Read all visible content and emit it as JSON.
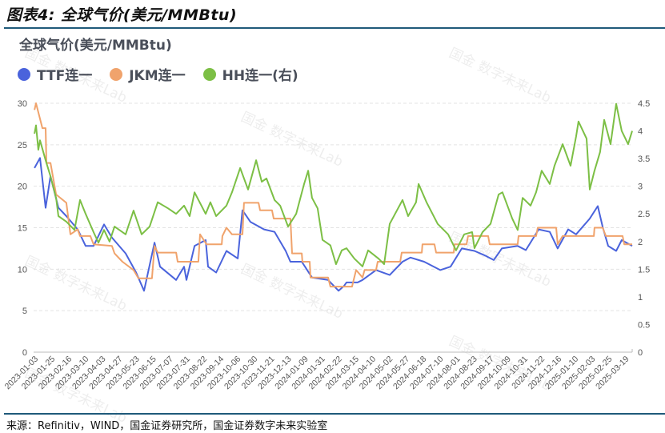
{
  "figure_title": "图表4:  全球气价(美元/MMBtu)",
  "source": "来源：Refinitiv，WIND，国金证券研究所，国金证券数字未来实验室",
  "watermark": "国金 数字未来Lab",
  "chart_data": {
    "type": "line",
    "title": "全球气价(美元/MMBtu)",
    "x_unit": "position along date axis, in date-label index (0 = 2023-01-03, 35 = 2025-03-19)",
    "x_tick_labels": [
      "2023-01-03",
      "2023-01-25",
      "2023-02-16",
      "2023-03-10",
      "2023-04-03",
      "2023-04-27",
      "2023-05-23",
      "2023-06-15",
      "2023-07-07",
      "2023-07-31",
      "2023-08-22",
      "2023-09-14",
      "2023-10-06",
      "2023-10-30",
      "2023-11-21",
      "2023-12-13",
      "2024-01-09",
      "2024-01-31",
      "2024-02-22",
      "2024-03-15",
      "2024-04-10",
      "2024-05-02",
      "2024-05-27",
      "2024-06-18",
      "2024-07-10",
      "2024-08-01",
      "2024-08-23",
      "2024-09-17",
      "2024-10-09",
      "2024-10-31",
      "2024-11-22",
      "2024-12-16",
      "2025-01-10",
      "2025-02-03",
      "2025-02-25",
      "2025-03-19"
    ],
    "x_range": [
      0,
      35.5
    ],
    "y_left": {
      "ticks": [
        "0",
        "5",
        "10",
        "15",
        "20",
        "25",
        "30"
      ],
      "range": [
        0,
        30
      ]
    },
    "y_right": {
      "ticks": [
        "0",
        "0.5",
        "1",
        "1.5",
        "2",
        "2.5",
        "3",
        "3.5",
        "4",
        "4.5"
      ],
      "range": [
        0,
        4.5
      ]
    },
    "grid": true,
    "legend_position": "top-left",
    "series": [
      {
        "name": "TTF连一",
        "axis": "left",
        "color": "#4a63dc",
        "points": [
          [
            0.05,
            22.2
          ],
          [
            0.38,
            23.4
          ],
          [
            0.71,
            17.4
          ],
          [
            1.0,
            21.2
          ],
          [
            1.47,
            17.4
          ],
          [
            1.94,
            16.4
          ],
          [
            2.61,
            14.8
          ],
          [
            3.08,
            12.8
          ],
          [
            3.55,
            12.8
          ],
          [
            4.17,
            15.4
          ],
          [
            4.64,
            13.8
          ],
          [
            5.45,
            11.9
          ],
          [
            6.07,
            9.6
          ],
          [
            6.54,
            7.4
          ],
          [
            7.16,
            13.2
          ],
          [
            7.49,
            10.3
          ],
          [
            8.44,
            8.7
          ],
          [
            8.91,
            10.3
          ],
          [
            9.05,
            8.7
          ],
          [
            9.53,
            12.8
          ],
          [
            10.19,
            13.5
          ],
          [
            10.33,
            10.3
          ],
          [
            10.81,
            9.6
          ],
          [
            11.42,
            12.2
          ],
          [
            12.09,
            11.3
          ],
          [
            12.37,
            17.1
          ],
          [
            12.84,
            15.7
          ],
          [
            13.65,
            14.8
          ],
          [
            14.27,
            14.5
          ],
          [
            14.93,
            12.2
          ],
          [
            15.21,
            10.9
          ],
          [
            15.88,
            10.9
          ],
          [
            16.49,
            9.0
          ],
          [
            17.44,
            8.7
          ],
          [
            18.06,
            7.4
          ],
          [
            18.39,
            8.0
          ],
          [
            18.53,
            8.4
          ],
          [
            19.19,
            8.4
          ],
          [
            19.48,
            8.7
          ],
          [
            20.28,
            9.9
          ],
          [
            21.09,
            9.3
          ],
          [
            21.85,
            10.9
          ],
          [
            22.32,
            11.4
          ],
          [
            23.13,
            10.9
          ],
          [
            24.08,
            9.9
          ],
          [
            24.69,
            10.3
          ],
          [
            25.36,
            12.5
          ],
          [
            26.11,
            12.2
          ],
          [
            26.78,
            11.6
          ],
          [
            27.25,
            11.1
          ],
          [
            27.73,
            12.5
          ],
          [
            28.67,
            12.8
          ],
          [
            29.15,
            12.3
          ],
          [
            29.91,
            14.8
          ],
          [
            30.57,
            14.5
          ],
          [
            31.04,
            12.5
          ],
          [
            31.66,
            14.8
          ],
          [
            32.13,
            14.2
          ],
          [
            32.94,
            16.1
          ],
          [
            33.41,
            17.6
          ],
          [
            33.7,
            15.1
          ],
          [
            34.03,
            12.8
          ],
          [
            34.5,
            12.2
          ],
          [
            34.83,
            13.5
          ],
          [
            35.45,
            12.8
          ]
        ]
      },
      {
        "name": "JKM连一",
        "axis": "left",
        "color": "#f0a36c",
        "points": [
          [
            0.05,
            29.2
          ],
          [
            0.14,
            30.0
          ],
          [
            0.52,
            27.0
          ],
          [
            0.71,
            27.0
          ],
          [
            0.76,
            22.8
          ],
          [
            1.0,
            22.8
          ],
          [
            1.33,
            19.0
          ],
          [
            1.94,
            18.0
          ],
          [
            2.18,
            14.2
          ],
          [
            2.61,
            14.8
          ],
          [
            2.75,
            14.0
          ],
          [
            3.36,
            14.0
          ],
          [
            3.55,
            13.0
          ],
          [
            4.64,
            12.8
          ],
          [
            4.79,
            11.9
          ],
          [
            5.26,
            10.9
          ],
          [
            5.92,
            9.9
          ],
          [
            6.21,
            8.9
          ],
          [
            7.01,
            8.9
          ],
          [
            7.16,
            12.8
          ],
          [
            7.35,
            12.0
          ],
          [
            8.44,
            12.0
          ],
          [
            8.53,
            10.9
          ],
          [
            9.76,
            10.9
          ],
          [
            9.86,
            14.2
          ],
          [
            10.24,
            13.0
          ],
          [
            11.14,
            13.0
          ],
          [
            11.18,
            14.0
          ],
          [
            11.42,
            15.0
          ],
          [
            11.75,
            14.2
          ],
          [
            12.37,
            14.2
          ],
          [
            12.46,
            18.0
          ],
          [
            13.32,
            18.0
          ],
          [
            13.41,
            17.1
          ],
          [
            14.12,
            17.1
          ],
          [
            14.22,
            16.1
          ],
          [
            15.21,
            16.1
          ],
          [
            15.31,
            11.9
          ],
          [
            15.88,
            11.9
          ],
          [
            15.92,
            10.9
          ],
          [
            16.35,
            10.9
          ],
          [
            16.4,
            9.0
          ],
          [
            17.44,
            9.0
          ],
          [
            17.58,
            7.9
          ],
          [
            18.86,
            7.9
          ],
          [
            19.1,
            9.9
          ],
          [
            19.48,
            9.0
          ],
          [
            19.6,
            9.9
          ],
          [
            20.28,
            9.9
          ],
          [
            20.38,
            10.9
          ],
          [
            21.71,
            10.9
          ],
          [
            21.8,
            12.0
          ],
          [
            22.99,
            12.0
          ],
          [
            23.03,
            13.0
          ],
          [
            23.74,
            13.0
          ],
          [
            23.84,
            12.0
          ],
          [
            24.88,
            12.0
          ],
          [
            24.93,
            13.0
          ],
          [
            25.64,
            13.0
          ],
          [
            25.73,
            14.0
          ],
          [
            26.92,
            14.0
          ],
          [
            27.01,
            13.0
          ],
          [
            28.67,
            13.0
          ],
          [
            28.72,
            14.0
          ],
          [
            29.76,
            14.0
          ],
          [
            29.86,
            15.0
          ],
          [
            30.95,
            15.0
          ],
          [
            31.04,
            13.0
          ],
          [
            31.33,
            14.0
          ],
          [
            33.18,
            14.0
          ],
          [
            33.22,
            15.0
          ],
          [
            33.7,
            15.0
          ],
          [
            33.89,
            14.0
          ],
          [
            34.88,
            14.0
          ],
          [
            34.98,
            13.0
          ],
          [
            35.45,
            13.0
          ]
        ]
      },
      {
        "name": "HH连一(右)",
        "axis": "right",
        "color": "#7cbf45",
        "points": [
          [
            0.05,
            3.95
          ],
          [
            0.14,
            4.1
          ],
          [
            0.28,
            3.66
          ],
          [
            0.38,
            3.83
          ],
          [
            0.71,
            3.47
          ],
          [
            1.0,
            3.18
          ],
          [
            1.33,
            2.79
          ],
          [
            1.47,
            2.46
          ],
          [
            1.94,
            2.36
          ],
          [
            2.42,
            2.21
          ],
          [
            2.75,
            2.75
          ],
          [
            3.08,
            2.5
          ],
          [
            3.55,
            2.17
          ],
          [
            3.84,
            1.98
          ],
          [
            4.17,
            2.21
          ],
          [
            4.5,
            2.0
          ],
          [
            4.79,
            2.27
          ],
          [
            5.45,
            2.13
          ],
          [
            5.92,
            2.56
          ],
          [
            6.4,
            2.13
          ],
          [
            6.87,
            2.27
          ],
          [
            7.35,
            2.71
          ],
          [
            7.96,
            2.6
          ],
          [
            8.44,
            2.5
          ],
          [
            8.91,
            2.65
          ],
          [
            9.24,
            2.46
          ],
          [
            9.53,
            2.89
          ],
          [
            10.19,
            2.5
          ],
          [
            10.47,
            2.71
          ],
          [
            10.81,
            2.46
          ],
          [
            11.42,
            2.65
          ],
          [
            11.75,
            2.89
          ],
          [
            12.23,
            3.33
          ],
          [
            12.7,
            2.94
          ],
          [
            13.18,
            3.47
          ],
          [
            13.51,
            3.08
          ],
          [
            13.79,
            3.14
          ],
          [
            14.27,
            2.75
          ],
          [
            14.6,
            2.65
          ],
          [
            15.07,
            2.27
          ],
          [
            15.55,
            2.5
          ],
          [
            16.02,
            3.04
          ],
          [
            16.26,
            3.28
          ],
          [
            16.49,
            2.79
          ],
          [
            16.82,
            2.6
          ],
          [
            17.11,
            2.03
          ],
          [
            17.58,
            1.93
          ],
          [
            17.91,
            1.59
          ],
          [
            18.25,
            1.84
          ],
          [
            18.53,
            1.88
          ],
          [
            19.0,
            1.69
          ],
          [
            19.48,
            1.55
          ],
          [
            19.81,
            1.84
          ],
          [
            20.43,
            1.69
          ],
          [
            20.76,
            1.59
          ],
          [
            21.09,
            2.32
          ],
          [
            21.85,
            2.75
          ],
          [
            22.18,
            2.46
          ],
          [
            22.65,
            2.71
          ],
          [
            22.8,
            3.04
          ],
          [
            23.27,
            2.71
          ],
          [
            23.93,
            2.32
          ],
          [
            24.55,
            2.13
          ],
          [
            25.02,
            1.84
          ],
          [
            25.5,
            2.13
          ],
          [
            25.97,
            2.17
          ],
          [
            26.11,
            1.88
          ],
          [
            26.59,
            2.17
          ],
          [
            27.06,
            2.32
          ],
          [
            27.54,
            2.85
          ],
          [
            27.77,
            2.89
          ],
          [
            28.34,
            2.42
          ],
          [
            28.67,
            2.21
          ],
          [
            28.82,
            2.5
          ],
          [
            28.96,
            2.79
          ],
          [
            29.43,
            2.65
          ],
          [
            29.76,
            2.89
          ],
          [
            30.09,
            3.28
          ],
          [
            30.57,
            3.04
          ],
          [
            30.85,
            3.37
          ],
          [
            31.33,
            3.76
          ],
          [
            31.8,
            3.37
          ],
          [
            32.13,
            3.9
          ],
          [
            32.27,
            4.17
          ],
          [
            32.75,
            3.86
          ],
          [
            32.94,
            2.94
          ],
          [
            33.22,
            3.28
          ],
          [
            33.55,
            3.62
          ],
          [
            33.79,
            4.2
          ],
          [
            34.17,
            3.76
          ],
          [
            34.5,
            4.49
          ],
          [
            34.83,
            4.0
          ],
          [
            35.21,
            3.76
          ],
          [
            35.45,
            4.0
          ]
        ]
      }
    ]
  }
}
